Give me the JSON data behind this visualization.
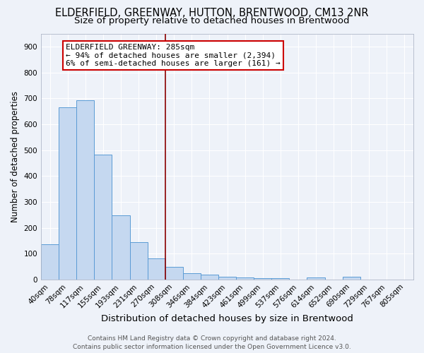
{
  "title": "ELDERFIELD, GREENWAY, HUTTON, BRENTWOOD, CM13 2NR",
  "subtitle": "Size of property relative to detached houses in Brentwood",
  "xlabel": "Distribution of detached houses by size in Brentwood",
  "ylabel": "Number of detached properties",
  "categories": [
    "40sqm",
    "78sqm",
    "117sqm",
    "155sqm",
    "193sqm",
    "231sqm",
    "270sqm",
    "308sqm",
    "346sqm",
    "384sqm",
    "423sqm",
    "461sqm",
    "499sqm",
    "537sqm",
    "576sqm",
    "614sqm",
    "652sqm",
    "690sqm",
    "729sqm",
    "767sqm",
    "805sqm"
  ],
  "values": [
    135,
    665,
    693,
    481,
    248,
    145,
    82,
    48,
    25,
    20,
    10,
    8,
    5,
    4,
    0,
    9,
    0,
    10,
    0,
    0,
    0
  ],
  "bar_color": "#c5d8f0",
  "bar_edge_color": "#5b9bd5",
  "property_line_color": "#8b0000",
  "annotation_title": "ELDERFIELD GREENWAY: 285sqm",
  "annotation_line1": "← 94% of detached houses are smaller (2,394)",
  "annotation_line2": "6% of semi-detached houses are larger (161) →",
  "annotation_box_facecolor": "#ffffff",
  "annotation_box_edgecolor": "#cc0000",
  "ylim": [
    0,
    950
  ],
  "yticks": [
    0,
    100,
    200,
    300,
    400,
    500,
    600,
    700,
    800,
    900
  ],
  "background_color": "#eef2f9",
  "grid_color": "#ffffff",
  "footer_line1": "Contains HM Land Registry data © Crown copyright and database right 2024.",
  "footer_line2": "Contains public sector information licensed under the Open Government Licence v3.0.",
  "title_fontsize": 10.5,
  "subtitle_fontsize": 9.5,
  "xlabel_fontsize": 9.5,
  "ylabel_fontsize": 8.5,
  "tick_fontsize": 7.5,
  "annotation_fontsize": 8.0,
  "footer_fontsize": 6.5
}
